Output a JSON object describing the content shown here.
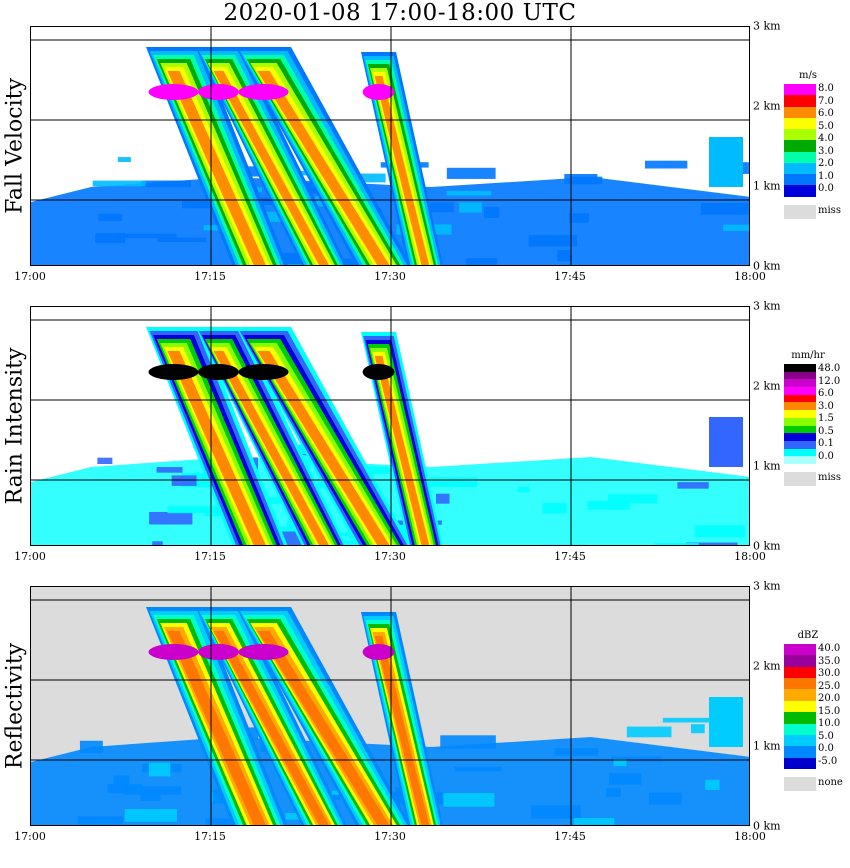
{
  "title": "2020-01-08   17:00-18:00 UTC",
  "x_ticks": [
    "17:00",
    "17:15",
    "17:30",
    "17:45",
    "18:00"
  ],
  "y_ticks": [
    "0 km",
    "1 km",
    "2 km",
    "3 km"
  ],
  "missing_color": "#dcdcdc",
  "chart_data": [
    {
      "type": "heatmap",
      "ylabel": "Fall Velocity",
      "unit": "m/s",
      "x_range": [
        "17:00",
        "18:00"
      ],
      "y_range_km": [
        0,
        3
      ],
      "grid": true,
      "legend": "right",
      "legend_labels": [
        "8.0",
        "7.0",
        "6.0",
        "5.0",
        "4.0",
        "3.0",
        "2.0",
        "1.0",
        "0.0",
        "miss"
      ],
      "legend_colors": [
        "#ff00ff",
        "#ff0000",
        "#ff8c00",
        "#ffff00",
        "#aaff00",
        "#00aa00",
        "#00ffaa",
        "#00bbff",
        "#0077ff",
        "#0000dd"
      ],
      "background": "#ffffff"
    },
    {
      "type": "heatmap",
      "ylabel": "Rain Intensity",
      "unit": "mm/hr",
      "x_range": [
        "17:00",
        "18:00"
      ],
      "y_range_km": [
        0,
        3
      ],
      "grid": true,
      "legend": "right",
      "legend_labels": [
        "48.0",
        "12.0",
        "6.0",
        "3.0",
        "1.5",
        "0.5",
        "0.1",
        "0.0",
        "miss"
      ],
      "legend_colors": [
        "#000000",
        "#880088",
        "#cc00cc",
        "#ff00ff",
        "#ff0000",
        "#ff8800",
        "#ffff00",
        "#88ff00",
        "#00cc00",
        "#0000dd",
        "#3366ff",
        "#00ffff",
        "#aaffff"
      ],
      "background": "#ffffff"
    },
    {
      "type": "heatmap",
      "ylabel": "Reflectivity",
      "unit": "dBZ",
      "x_range": [
        "17:00",
        "18:00"
      ],
      "y_range_km": [
        0,
        3
      ],
      "grid": true,
      "legend": "right",
      "legend_labels": [
        "40.0",
        "35.0",
        "30.0",
        "25.0",
        "20.0",
        "15.0",
        "10.0",
        "5.0",
        "0.0",
        "-5.0",
        "none"
      ],
      "legend_colors": [
        "#cc00cc",
        "#990099",
        "#ff0000",
        "#ff7700",
        "#ffaa00",
        "#ffff00",
        "#00bb00",
        "#00ffcc",
        "#00ccff",
        "#0088ff",
        "#0000cc"
      ],
      "background": "#dcdcdc"
    }
  ]
}
